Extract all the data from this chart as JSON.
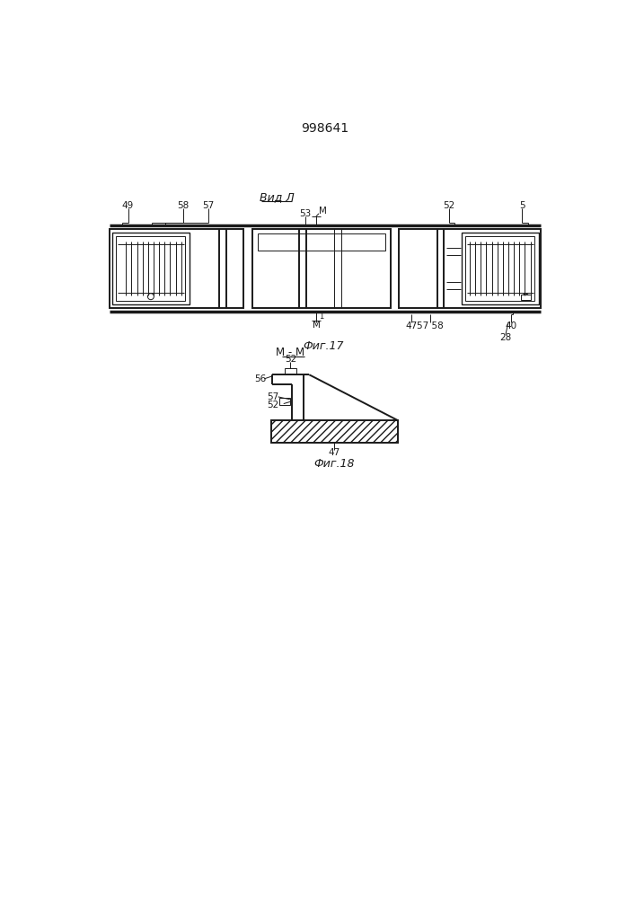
{
  "title": "998641",
  "fig17_label": "Фиг.17",
  "fig18_label": "Фиг.18",
  "view_label": "Вид Л",
  "line_color": "#1a1a1a"
}
